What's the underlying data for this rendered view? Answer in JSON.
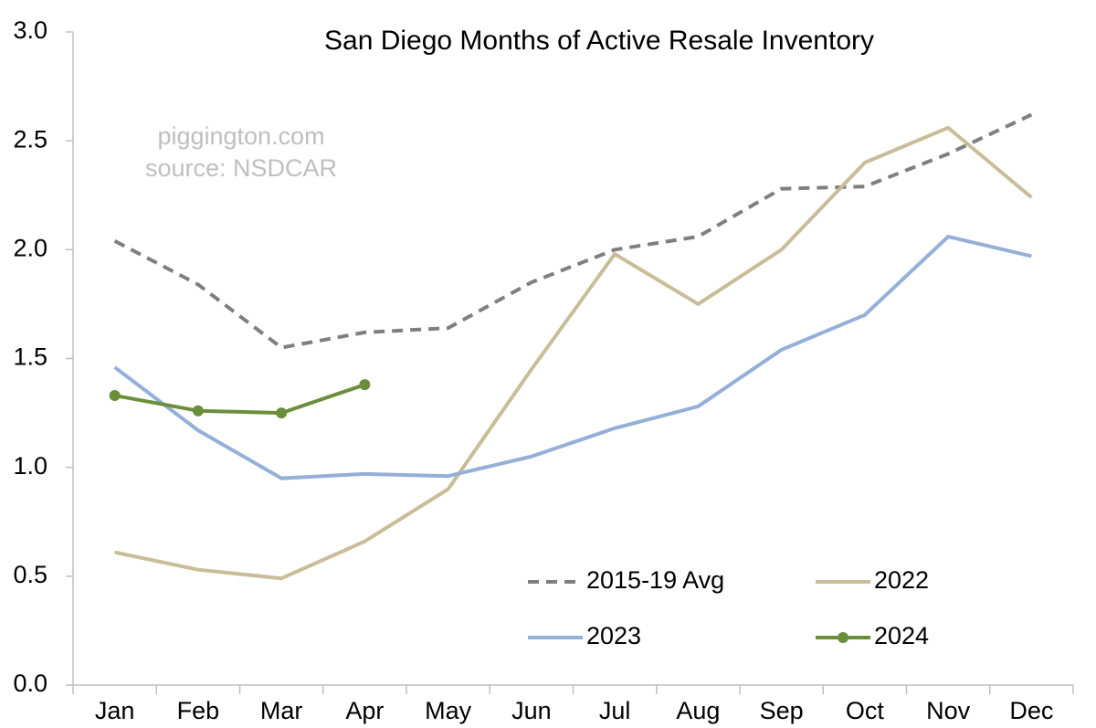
{
  "chart_data": {
    "type": "line",
    "title": "San Diego Months of Active Resale Inventory",
    "annotations": [
      "piggington.com",
      "source: NSDCAR"
    ],
    "categories": [
      "Jan",
      "Feb",
      "Mar",
      "Apr",
      "May",
      "Jun",
      "Jul",
      "Aug",
      "Sep",
      "Oct",
      "Nov",
      "Dec"
    ],
    "series": [
      {
        "name": "2015-19 Avg",
        "color": "#7f7f7f",
        "dashed": true,
        "markers": false,
        "values": [
          2.04,
          1.84,
          1.55,
          1.62,
          1.64,
          1.85,
          2.0,
          2.06,
          2.28,
          2.29,
          2.44,
          2.62
        ]
      },
      {
        "name": "2022",
        "color": "#c8bd98",
        "dashed": false,
        "markers": false,
        "values": [
          0.61,
          0.53,
          0.49,
          0.66,
          0.9,
          1.45,
          1.98,
          1.75,
          2.0,
          2.4,
          2.56,
          2.24
        ]
      },
      {
        "name": "2023",
        "color": "#94afd8",
        "dashed": false,
        "markers": false,
        "values": [
          1.46,
          1.17,
          0.95,
          0.97,
          0.96,
          1.05,
          1.18,
          1.28,
          1.54,
          1.7,
          2.06,
          1.97
        ]
      },
      {
        "name": "2024",
        "color": "#6b8e3a",
        "dashed": false,
        "markers": true,
        "values": [
          1.33,
          1.26,
          1.25,
          1.38,
          null,
          null,
          null,
          null,
          null,
          null,
          null,
          null
        ]
      }
    ],
    "ylim": [
      0,
      3
    ],
    "yticks": [
      {
        "value": 0,
        "label": "0.0"
      },
      0.5,
      {
        "value": 1,
        "label": "1.0"
      },
      1.5,
      {
        "value": 2,
        "label": "2.0"
      },
      2.5,
      {
        "value": 3,
        "label": "3.0"
      }
    ],
    "grid": false,
    "legend": "lower right"
  }
}
